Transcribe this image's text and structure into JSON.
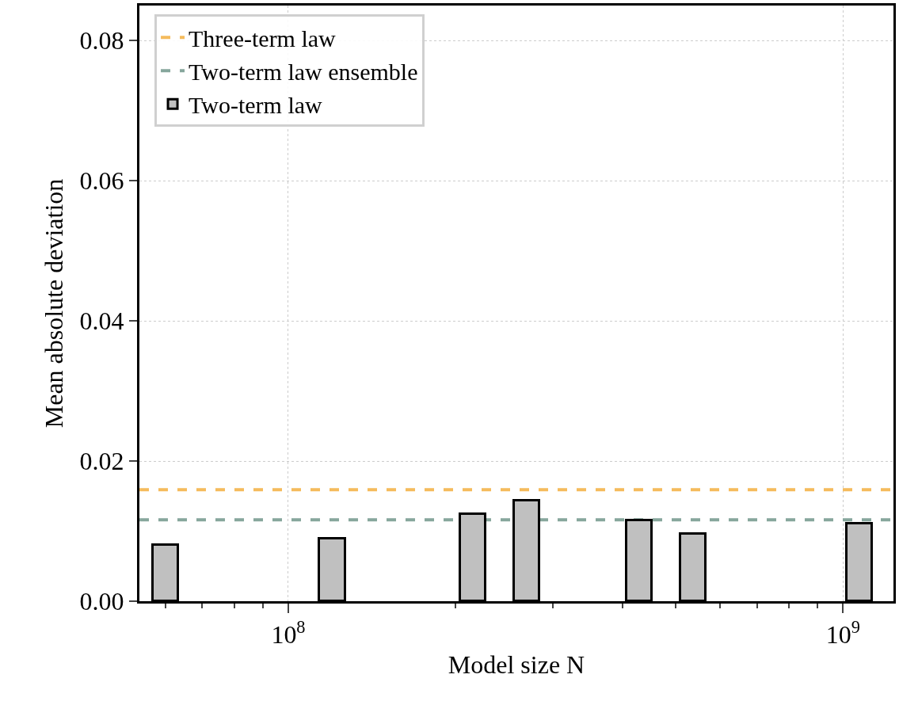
{
  "chart_data": {
    "type": "bar",
    "xlabel": "Model size N",
    "ylabel": "Mean absolute deviation",
    "x": [
      60000000,
      120000000,
      215000000,
      269000000,
      429000000,
      536000000,
      1070000000
    ],
    "series": [
      {
        "name": "Two-term law",
        "color": "#c0c0c0",
        "values": [
          0.008,
          0.0089,
          0.0124,
          0.0144,
          0.0115,
          0.0096,
          0.0111
        ]
      }
    ],
    "ref_lines": [
      {
        "axis": "y",
        "value": 0.0159,
        "label": "Three-term law",
        "color": "#f5bb5c",
        "line_style": "dashed"
      },
      {
        "axis": "y",
        "value": 0.0116,
        "label": "Two-term law ensemble",
        "color": "#86a69c",
        "line_style": "dashed"
      }
    ],
    "log": "x",
    "xlim": [
      53900000,
      1233000000
    ],
    "xticks": [
      {
        "value": 60000000,
        "label": null
      },
      {
        "value": 70000000,
        "label": null
      },
      {
        "value": 80000000,
        "label": null
      },
      {
        "value": 90000000,
        "label": null
      },
      {
        "value": 100000000,
        "label": "10$^{8}$"
      },
      {
        "value": 200000000,
        "label": null
      },
      {
        "value": 300000000,
        "label": null
      },
      {
        "value": 400000000,
        "label": null
      },
      {
        "value": 500000000,
        "label": null
      },
      {
        "value": 600000000,
        "label": null
      },
      {
        "value": 700000000,
        "label": null
      },
      {
        "value": 800000000,
        "label": null
      },
      {
        "value": 900000000,
        "label": null
      },
      {
        "value": 1000000000,
        "label": "10$^{9}$"
      }
    ],
    "ylim": [
      0,
      0.085
    ],
    "yticks": [
      {
        "value": 0,
        "label": "0.00"
      },
      {
        "value": 0.02,
        "label": "0.02"
      },
      {
        "value": 0.04,
        "label": "0.04"
      },
      {
        "value": 0.06,
        "label": "0.06"
      },
      {
        "value": 0.08,
        "label": "0.08"
      }
    ],
    "grid": true,
    "legend": "top left"
  }
}
